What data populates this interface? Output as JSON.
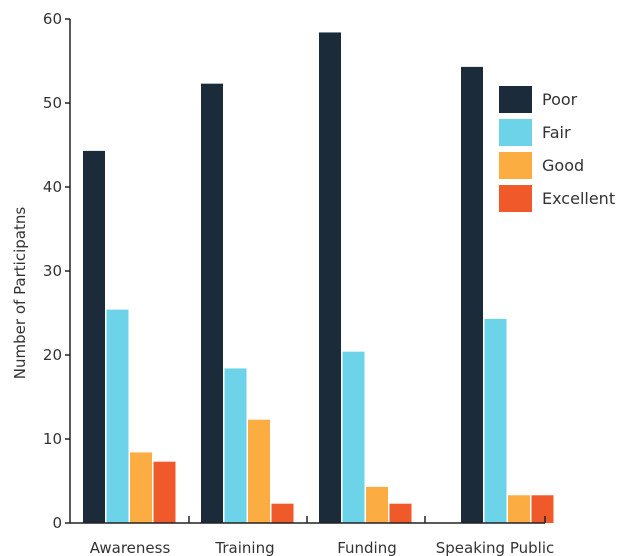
{
  "chart_data": {
    "type": "bar",
    "title": "",
    "xlabel": "",
    "ylabel": "Number of Participatns",
    "ylim": [
      0,
      60
    ],
    "yticks": [
      0,
      10,
      20,
      30,
      40,
      50,
      60
    ],
    "grid": false,
    "legend_position": "top-right",
    "categories": [
      "Awareness",
      "Training",
      "Funding",
      "Speaking Public"
    ],
    "series": [
      {
        "name": "Poor",
        "color": "#1c2b3a",
        "values": [
          44.3,
          52.3,
          58.4,
          54.3
        ]
      },
      {
        "name": "Fair",
        "color": "#6dd3e8",
        "values": [
          25.4,
          18.4,
          20.4,
          24.3
        ]
      },
      {
        "name": "Good",
        "color": "#fbad41",
        "values": [
          8.4,
          12.3,
          4.3,
          3.3
        ]
      },
      {
        "name": "Excellent",
        "color": "#f0592a",
        "values": [
          7.3,
          2.3,
          2.3,
          3.3
        ]
      }
    ]
  }
}
